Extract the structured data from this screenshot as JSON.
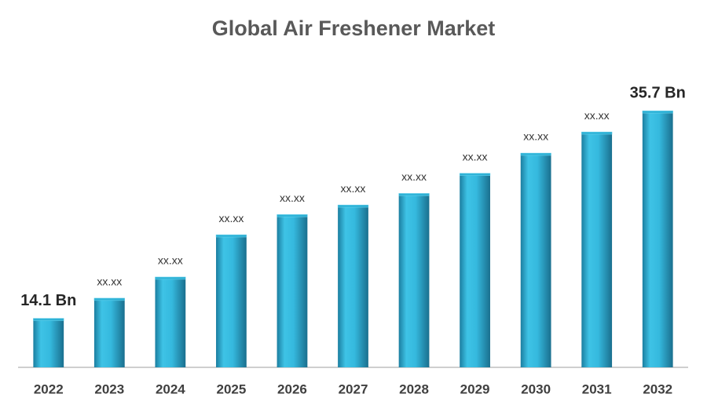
{
  "chart_data": {
    "type": "bar",
    "title": "Global Air Freshener Market",
    "categories": [
      "2022",
      "2023",
      "2024",
      "2025",
      "2026",
      "2027",
      "2028",
      "2029",
      "2030",
      "2031",
      "2032"
    ],
    "values": [
      14.1,
      16.2,
      18.4,
      22.8,
      24.9,
      25.9,
      27.1,
      29.2,
      31.3,
      33.5,
      35.7
    ],
    "value_labels": [
      "14.1 Bn",
      "xx.xx",
      "xx.xx",
      "xx.xx",
      "xx.xx",
      "xx.xx",
      "xx.xx",
      "xx.xx",
      "xx.xx",
      "xx.xx",
      "35.7 Bn"
    ],
    "color": "#2fb4d8",
    "ylim": [
      9,
      38
    ]
  }
}
